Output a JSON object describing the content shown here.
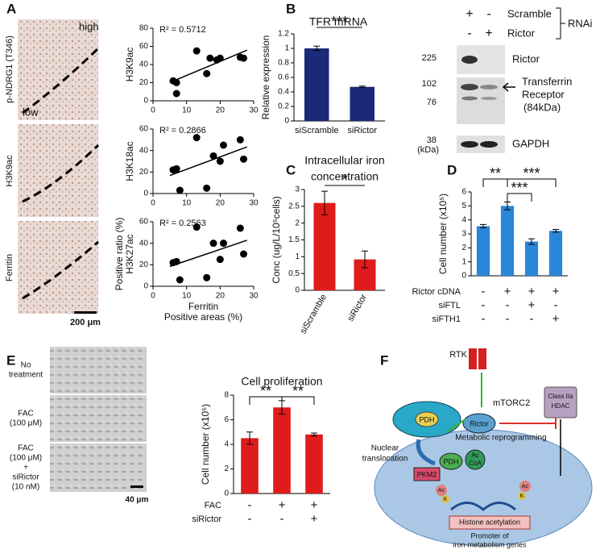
{
  "panels": [
    "A",
    "B",
    "C",
    "D",
    "E",
    "F"
  ],
  "panel_a": {
    "rows": [
      "p-NDRG1 (T346)",
      "H3K9ac",
      "Ferritin"
    ],
    "high": "high",
    "low": "low",
    "scale": "200 μm"
  },
  "panel_e": {
    "rows": [
      [
        "No",
        "treatment"
      ],
      [
        "FAC",
        "(100 μM)"
      ],
      [
        "FAC",
        "(100 μM)",
        "+",
        "siRictor",
        "(10 nM)"
      ]
    ],
    "scale": "40 μm"
  },
  "blot": {
    "header": [
      {
        "label": "Scramble",
        "marks": [
          "+",
          "-"
        ]
      },
      {
        "label": "Rictor",
        "marks": [
          "-",
          "+"
        ]
      }
    ],
    "group": "RNAi",
    "markers": [
      225,
      102,
      76,
      38
    ],
    "unit": "(kDa)",
    "bands": [
      "Rictor",
      "Transferrin",
      "Receptor",
      "(84kDa)",
      "GAPDH"
    ]
  },
  "diagram": {
    "rtk": "RTK",
    "mtorc2": "mTORC2",
    "hdac": [
      "Class IIa",
      "HDAC"
    ],
    "pdh_mito": "PDH",
    "rictor": "Rictor",
    "nuclear": [
      "Nuclear",
      "translocation"
    ],
    "metabolic": "Metabolic reprogramming",
    "pdh_nuc": "PDH",
    "accoa": [
      "Ac",
      "CoA"
    ],
    "pkm2": "PKM2",
    "ac": "Ac",
    "k": "K",
    "histone": "Histone acetylation",
    "promoter": [
      "Promoter of",
      "iron-metabolism genes"
    ]
  },
  "chart_data": [
    {
      "type": "scatter",
      "annotation": "R² = 0.5712",
      "ylabel": [
        "H3K9ac"
      ],
      "x": [
        6,
        7,
        7,
        13,
        16,
        17,
        19,
        20,
        26,
        27
      ],
      "values": [
        22,
        20,
        8,
        55,
        30,
        47,
        45,
        47,
        48,
        47
      ],
      "color": "#000000",
      "xlim": [
        0,
        30
      ],
      "xticks": [
        0,
        10,
        20,
        30
      ],
      "ylim": [
        0,
        80
      ],
      "yticks": [
        0,
        20,
        40,
        60,
        80
      ]
    },
    {
      "type": "scatter",
      "annotation": "R² = 0.2866",
      "ylabel": [
        "H3K18ac"
      ],
      "x": [
        6,
        7,
        8,
        13,
        16,
        18,
        20,
        21,
        26,
        27
      ],
      "values": [
        22,
        23,
        3,
        52,
        5,
        35,
        30,
        45,
        50,
        32
      ],
      "color": "#000000",
      "xlim": [
        0,
        30
      ],
      "xticks": [
        0,
        10,
        20,
        30
      ],
      "ylim": [
        0,
        60
      ],
      "yticks": [
        0,
        20,
        40,
        60
      ]
    },
    {
      "type": "scatter",
      "annotation": "R² = 0.2563",
      "ylabel": [
        "Positive ratio (%)",
        "H3K27ac"
      ],
      "xlabel": [
        "Ferritin",
        "Positive areas (%)"
      ],
      "x": [
        6,
        7,
        8,
        13,
        16,
        18,
        20,
        21,
        26,
        27
      ],
      "values": [
        22,
        23,
        6,
        55,
        8,
        40,
        25,
        40,
        54,
        30
      ],
      "color": "#000000",
      "xlim": [
        0,
        30
      ],
      "xticks": [
        0,
        10,
        20,
        30
      ],
      "ylim": [
        0,
        60
      ],
      "yticks": [
        0,
        20,
        40,
        60
      ]
    },
    {
      "type": "bar",
      "title": [
        "TFR mRNA"
      ],
      "ylabel": [
        "Relative expression"
      ],
      "categories": [
        "siScramble",
        "siRictor"
      ],
      "values": [
        1.0,
        0.47
      ],
      "errors": [
        0.03,
        0.01
      ],
      "color": "#1b2a78",
      "ylim": [
        0,
        1.2
      ],
      "yticks": [
        0,
        0.2,
        0.4,
        0.6,
        0.8,
        1,
        1.2
      ],
      "significance": [
        "***"
      ]
    },
    {
      "type": "bar",
      "title": [
        "Intracellular iron",
        "concentration"
      ],
      "ylabel": [
        "Conc (ug/L/10⁵cells)"
      ],
      "categories": [
        "siScramble",
        "siRictor"
      ],
      "values": [
        2.6,
        0.92
      ],
      "errors": [
        0.35,
        0.25
      ],
      "color": "#e01b1b",
      "ylim": [
        0,
        3
      ],
      "yticks": [
        0,
        0.5,
        1,
        1.5,
        2,
        2.5,
        3
      ],
      "significance": [
        "*"
      ]
    },
    {
      "type": "bar",
      "ylabel": [
        "Cell number (x10⁵)"
      ],
      "values": [
        3.55,
        5.0,
        2.45,
        3.22
      ],
      "errors": [
        0.12,
        0.28,
        0.2,
        0.1
      ],
      "color": "#2a86d8",
      "ylim": [
        0,
        6
      ],
      "yticks": [
        0,
        1,
        2,
        3,
        4,
        5,
        6
      ],
      "conditions": [
        {
          "label": "Rictor cDNA",
          "marks": [
            "-",
            "+",
            "+",
            "+"
          ]
        },
        {
          "label": "siFTL",
          "marks": [
            "-",
            "-",
            "+",
            "-"
          ]
        },
        {
          "label": "siFTH1",
          "marks": [
            "-",
            "-",
            "-",
            "+"
          ]
        }
      ],
      "significance": [
        "**",
        "***",
        "***"
      ]
    },
    {
      "type": "bar",
      "title": [
        "Cell proliferation"
      ],
      "ylabel": [
        "Cell number (x10⁵)"
      ],
      "values": [
        4.5,
        7.0,
        4.8
      ],
      "errors": [
        0.5,
        0.55,
        0.12
      ],
      "color": "#e01b1b",
      "ylim": [
        0,
        8
      ],
      "yticks": [
        0,
        2,
        4,
        6,
        8
      ],
      "conditions": [
        {
          "label": "FAC",
          "marks": [
            "-",
            "+",
            "+"
          ]
        },
        {
          "label": "siRictor",
          "marks": [
            "-",
            "-",
            "+"
          ]
        }
      ],
      "significance": [
        "**",
        "**"
      ]
    }
  ]
}
